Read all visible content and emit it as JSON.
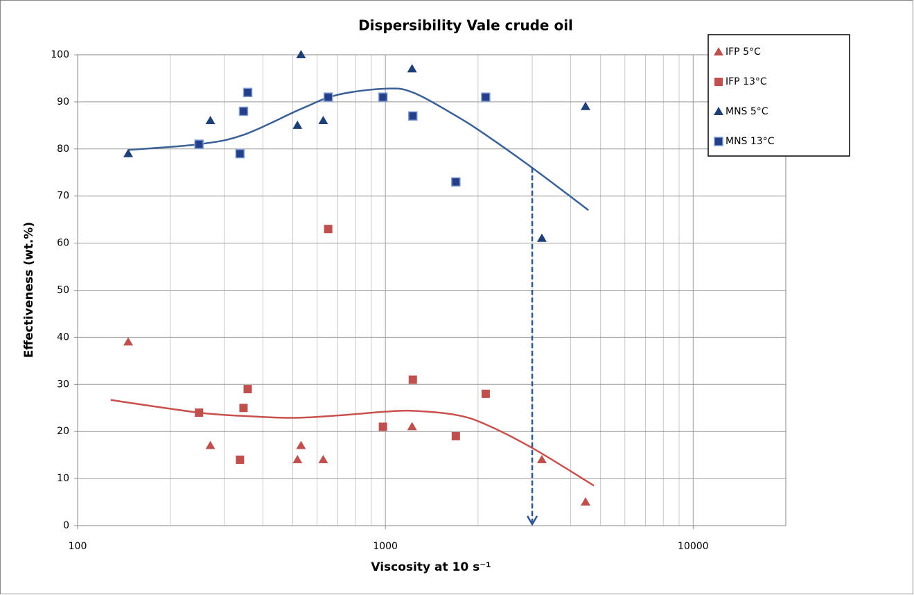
{
  "chart_data": {
    "type": "scatter",
    "title": "Dispersibility Vale crude oil",
    "x_label": "Viscosity at 10 s⁻¹",
    "y_label": "Effectiveness (wt.%)",
    "log_x": true,
    "grid": true,
    "minor_grid": true,
    "legend": "upper right",
    "xlim": [
      100,
      20000
    ],
    "xticks": [
      100,
      1000,
      10000
    ],
    "ylim": [
      0,
      100
    ],
    "yticks": [
      0,
      10,
      20,
      30,
      40,
      50,
      60,
      70,
      80,
      90,
      100
    ],
    "series": [
      {
        "name": "IFP 5°C",
        "color": "#c0504d",
        "marker": "triangle",
        "x": [
          146,
          270,
          518,
          532,
          628,
          1221,
          3224,
          4470
        ],
        "values": [
          39,
          17,
          14,
          17,
          14,
          21,
          14,
          5
        ]
      },
      {
        "name": "IFP 13°C",
        "color": "#c0504d",
        "marker": "square",
        "x": [
          248,
          337,
          346,
          357,
          652,
          982,
          1228,
          1694,
          2118
        ],
        "values": [
          24,
          14,
          25,
          29,
          63,
          21,
          31,
          19,
          28
        ]
      },
      {
        "name": "MNS 5°C",
        "color": "#1f3f77",
        "marker": "triangle",
        "x": [
          146,
          270,
          518,
          532,
          628,
          1221,
          3224,
          4470
        ],
        "values": [
          79,
          86,
          85,
          100,
          86,
          97,
          61,
          89
        ]
      },
      {
        "name": "MNS 13°C",
        "color": "#243f88",
        "marker": "square",
        "x": [
          248,
          337,
          346,
          357,
          652,
          982,
          1228,
          1694,
          2118
        ],
        "values": [
          81,
          79,
          88,
          92,
          91,
          91,
          87,
          73,
          91
        ]
      }
    ],
    "curves": [
      {
        "color": "#3a6197",
        "x": [
          146,
          248,
          346,
          532,
          700,
          1000,
          1228,
          1700,
          2118,
          3000,
          4570
        ],
        "values": [
          79.8,
          81,
          83,
          88.5,
          91.5,
          92.8,
          92,
          87,
          83,
          76,
          67
        ]
      },
      {
        "color": "#c9504d",
        "x": [
          128,
          248,
          346,
          500,
          700,
          1000,
          1228,
          1700,
          2118,
          3000,
          4760
        ],
        "values": [
          26.7,
          24,
          23.3,
          22.9,
          23.4,
          24.2,
          24.4,
          23.5,
          21.5,
          16.5,
          8.5
        ]
      }
    ],
    "arrow": {
      "color": "#2f5597",
      "x": 3000,
      "from": 76,
      "to": 0
    }
  }
}
